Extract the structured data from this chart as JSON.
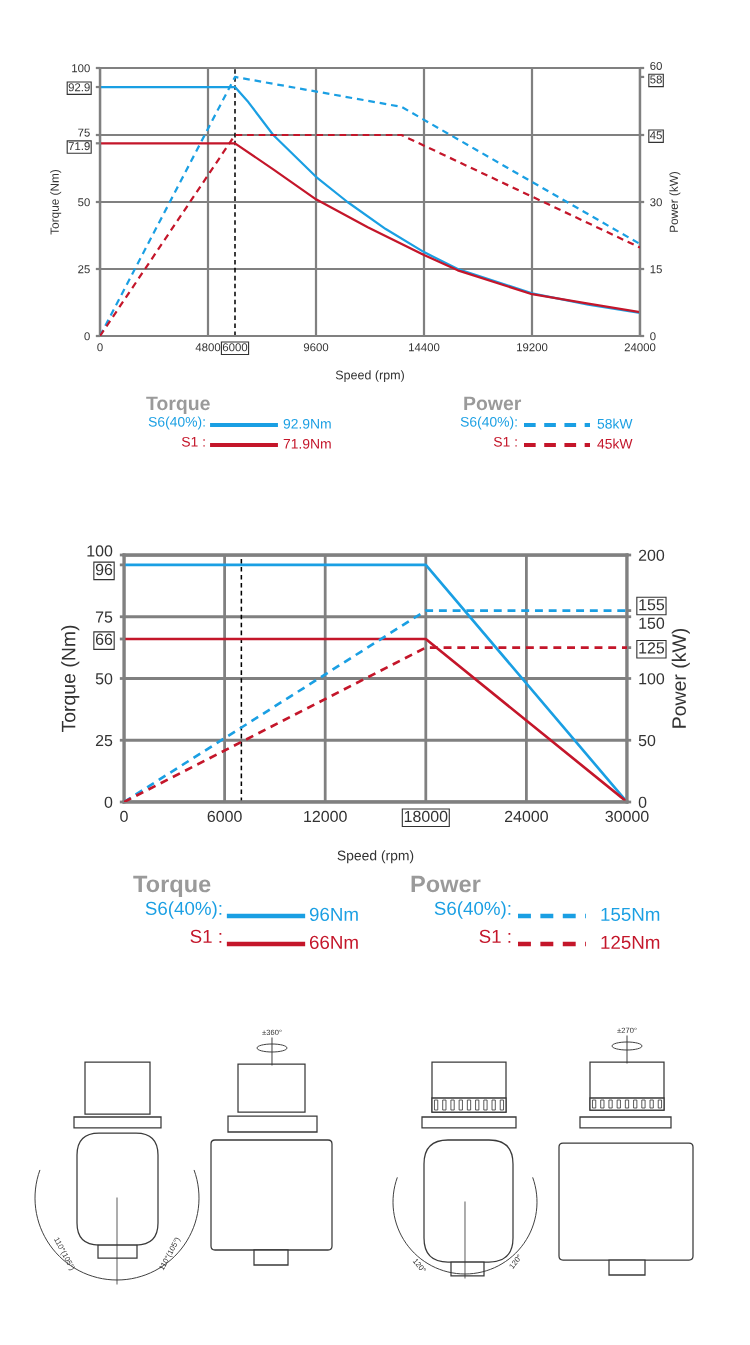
{
  "chart_data": [
    {
      "type": "line",
      "xlabel": "Speed (rpm)",
      "ylabel": "Torque (Nm)",
      "y2label": "Power (kW)",
      "xlim": [
        0,
        24000
      ],
      "xticks": [
        0,
        4800,
        {
          "value": 6000,
          "label": "6000"
        },
        9600,
        14400,
        19200,
        24000
      ],
      "ylim": [
        0,
        100
      ],
      "yticks": [
        0,
        25,
        50,
        75,
        100,
        {
          "value": 92.9,
          "label": "92.9"
        },
        {
          "value": 71.9,
          "label": "71.9"
        }
      ],
      "y2lim": [
        0,
        60
      ],
      "y2ticks": [
        0,
        15,
        30,
        {
          "value": 45,
          "label": "45"
        },
        {
          "value": 58,
          "label": "58"
        },
        60
      ],
      "grid": true,
      "legend": "bottom",
      "ref_lines": [
        {
          "axis": "x",
          "value": 6000,
          "color": "#000000",
          "line_style": "dashed"
        }
      ],
      "series": [
        {
          "name": "S6(40%):",
          "color": "#1a9fe3",
          "line_style": "solid",
          "x": [
            0,
            6000,
            6600,
            7700,
            9600,
            11000,
            12700,
            14400,
            15900,
            19200,
            21700,
            24000
          ],
          "values": [
            92.9,
            92.9,
            87.2,
            75.0,
            59.4,
            50.0,
            39.9,
            31.3,
            25.0,
            15.9,
            11.7,
            8.6
          ]
        },
        {
          "name": "S1 :",
          "color": "#c4162a",
          "line_style": "solid",
          "x": [
            0,
            6000,
            7700,
            9600,
            11900,
            14400,
            15900,
            19200,
            21700,
            24000
          ],
          "values": [
            71.9,
            71.9,
            62.2,
            51.0,
            40.6,
            30.2,
            24.5,
            15.6,
            12.1,
            8.9
          ]
        },
        {
          "name": "S6(40%):",
          "color": "#1a9fe3",
          "line_style": "dashed",
          "axis": "y2",
          "x": [
            0,
            6000,
            13400,
            24000
          ],
          "values": [
            0,
            58,
            51.3,
            20.6
          ]
        },
        {
          "name": "S1 :",
          "color": "#c4162a",
          "line_style": "dashed",
          "axis": "y2",
          "x": [
            0,
            6000,
            13400,
            24000
          ],
          "values": [
            0,
            45,
            45,
            19.8
          ]
        }
      ],
      "annotations": [
        "Torque",
        "Power",
        "92.9Nm",
        "71.9Nm",
        "58kW",
        "45kW"
      ]
    },
    {
      "type": "line",
      "xlabel": "Speed (rpm)",
      "ylabel": "Torque (Nm)",
      "y2label": "Power (kW)",
      "xlim": [
        0,
        30000
      ],
      "xticks": [
        0,
        6000,
        12000,
        {
          "value": 18000,
          "label": "18000"
        },
        24000,
        30000
      ],
      "ylim": [
        0,
        100
      ],
      "yticks": [
        0,
        25,
        50,
        75,
        100,
        {
          "value": 96,
          "label": "96"
        },
        {
          "value": 66,
          "label": "66"
        }
      ],
      "y2lim": [
        0,
        200
      ],
      "y2ticks": [
        0,
        50,
        100,
        150,
        200,
        {
          "value": 155,
          "label": "155"
        },
        {
          "value": 125,
          "label": "125"
        }
      ],
      "grid": true,
      "legend": "bottom",
      "ref_lines": [
        {
          "axis": "x",
          "value": 7000,
          "color": "#000000",
          "line_style": "dashed"
        }
      ],
      "series": [
        {
          "name": "S6(40%):",
          "color": "#1a9fe3",
          "line_style": "solid",
          "x": [
            0,
            18000,
            30000
          ],
          "values": [
            96,
            96,
            0
          ]
        },
        {
          "name": "S1 :",
          "color": "#c4162a",
          "line_style": "solid",
          "x": [
            0,
            18000,
            30000
          ],
          "values": [
            66,
            66,
            0
          ]
        },
        {
          "name": "S6(40%):",
          "color": "#1a9fe3",
          "line_style": "dashed",
          "axis": "y2",
          "x": [
            0,
            18000,
            30000
          ],
          "values": [
            0,
            155,
            155
          ]
        },
        {
          "name": "S1 :",
          "color": "#c4162a",
          "line_style": "dashed",
          "axis": "y2",
          "x": [
            0,
            18000,
            30000
          ],
          "values": [
            0,
            125,
            125
          ]
        }
      ],
      "annotations": [
        "Torque",
        "Power",
        "96Nm",
        "66Nm",
        "155Nm",
        "125Nm"
      ]
    },
    {
      "type": "other",
      "annotations": [
        "±360°",
        "110°(105°)",
        "110°(105°)",
        "±270°",
        "120°",
        "120°"
      ]
    }
  ]
}
